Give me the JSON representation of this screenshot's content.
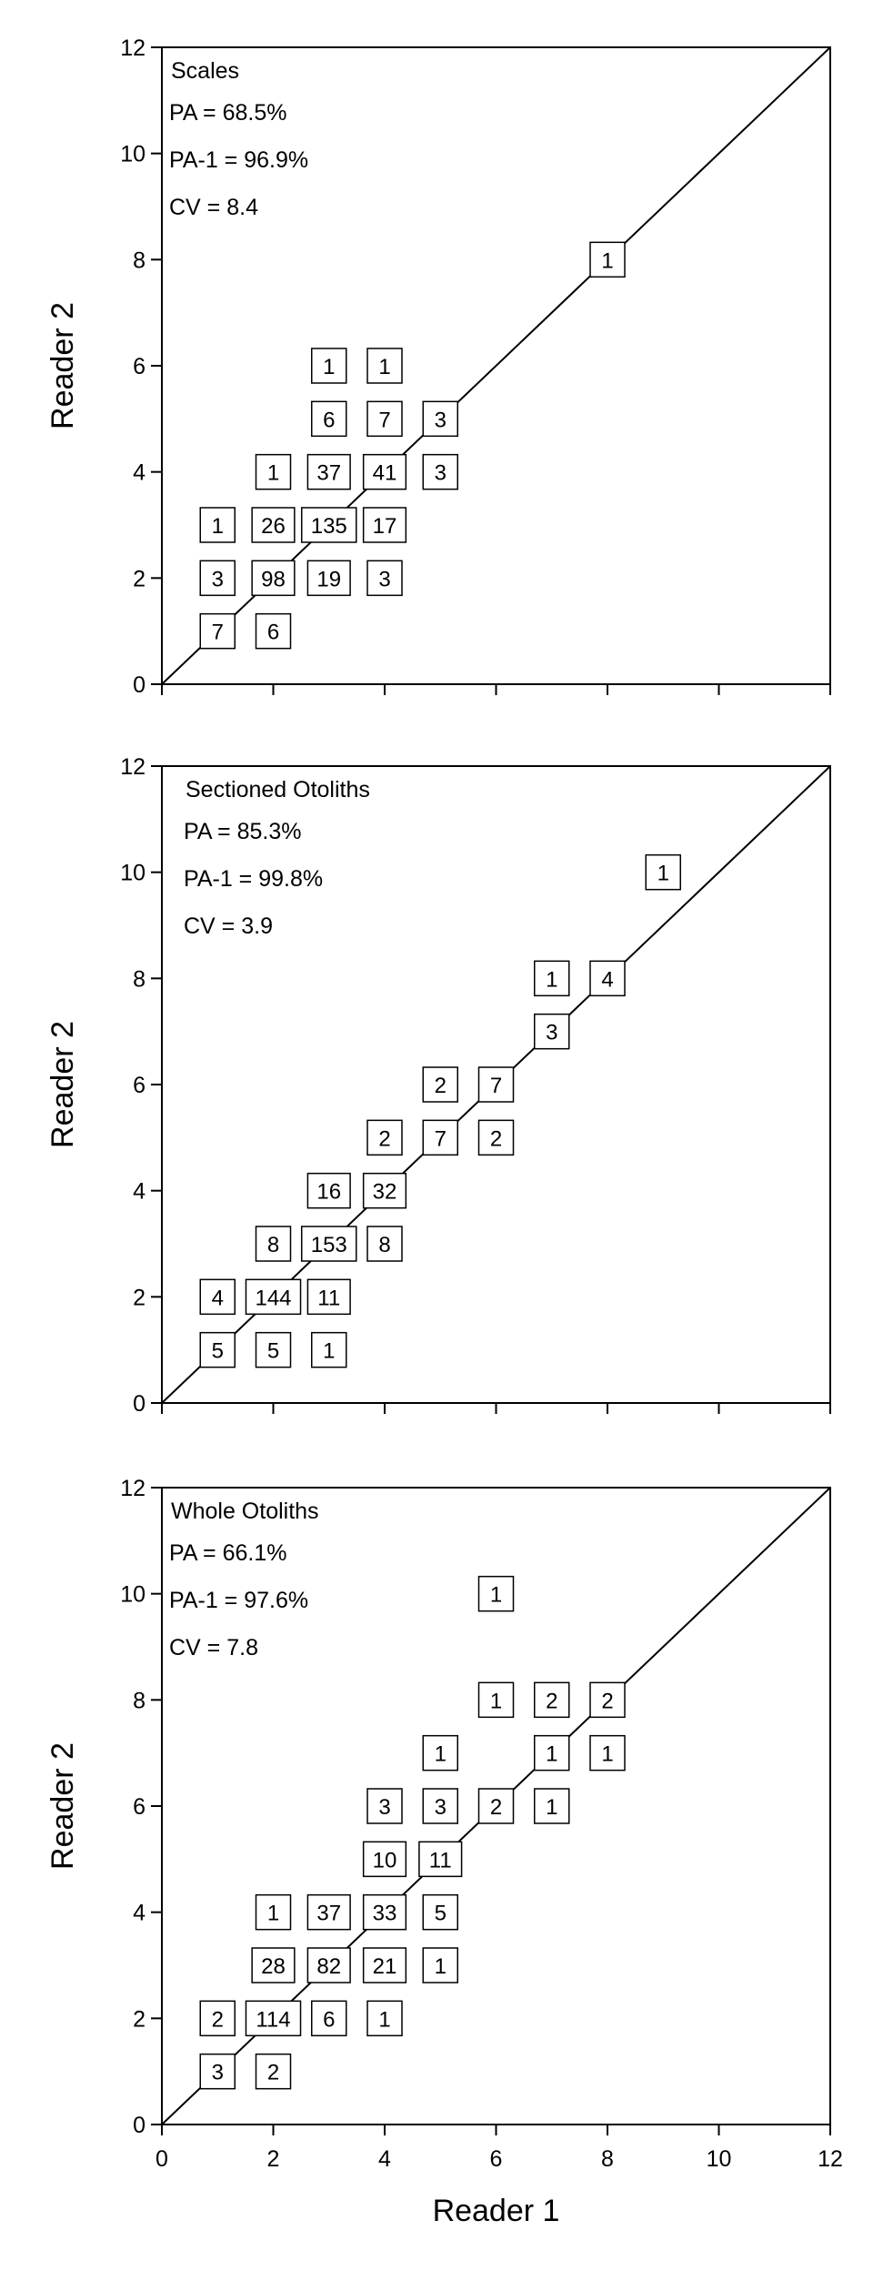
{
  "chart_data": [
    {
      "type": "scatter",
      "title": "Scales",
      "stats": [
        "PA = 68.5%",
        "PA-1 = 96.9%",
        "CV = 8.4"
      ],
      "xlabel": "",
      "ylabel": "Reader 2",
      "xlim": [
        0,
        12
      ],
      "ylim": [
        0,
        12
      ],
      "xticks": [
        0,
        2,
        4,
        6,
        8,
        10,
        12
      ],
      "yticks": [
        0,
        2,
        4,
        6,
        8,
        10,
        12
      ],
      "show_x_tick_labels": false,
      "reference_line": "1:1",
      "cells": [
        {
          "x": 1,
          "y": 1,
          "n": 7
        },
        {
          "x": 2,
          "y": 1,
          "n": 6
        },
        {
          "x": 1,
          "y": 2,
          "n": 3
        },
        {
          "x": 2,
          "y": 2,
          "n": 98
        },
        {
          "x": 3,
          "y": 2,
          "n": 19
        },
        {
          "x": 4,
          "y": 2,
          "n": 3
        },
        {
          "x": 1,
          "y": 3,
          "n": 1
        },
        {
          "x": 2,
          "y": 3,
          "n": 26
        },
        {
          "x": 3,
          "y": 3,
          "n": 135
        },
        {
          "x": 4,
          "y": 3,
          "n": 17
        },
        {
          "x": 2,
          "y": 4,
          "n": 1
        },
        {
          "x": 3,
          "y": 4,
          "n": 37
        },
        {
          "x": 4,
          "y": 4,
          "n": 41
        },
        {
          "x": 5,
          "y": 4,
          "n": 3
        },
        {
          "x": 3,
          "y": 5,
          "n": 6
        },
        {
          "x": 4,
          "y": 5,
          "n": 7
        },
        {
          "x": 5,
          "y": 5,
          "n": 3
        },
        {
          "x": 3,
          "y": 6,
          "n": 1
        },
        {
          "x": 4,
          "y": 6,
          "n": 1
        },
        {
          "x": 8,
          "y": 8,
          "n": 1
        }
      ]
    },
    {
      "type": "scatter",
      "title": "Sectioned Otoliths",
      "stats": [
        "PA = 85.3%",
        "PA-1 = 99.8%",
        "CV = 3.9"
      ],
      "xlabel": "",
      "ylabel": "Reader 2",
      "xlim": [
        0,
        12
      ],
      "ylim": [
        0,
        12
      ],
      "xticks": [
        0,
        2,
        4,
        6,
        8,
        10,
        12
      ],
      "yticks": [
        0,
        2,
        4,
        6,
        8,
        10,
        12
      ],
      "show_x_tick_labels": false,
      "reference_line": "1:1",
      "cells": [
        {
          "x": 1,
          "y": 1,
          "n": 5
        },
        {
          "x": 2,
          "y": 1,
          "n": 5
        },
        {
          "x": 3,
          "y": 1,
          "n": 1
        },
        {
          "x": 1,
          "y": 2,
          "n": 4
        },
        {
          "x": 2,
          "y": 2,
          "n": 144
        },
        {
          "x": 3,
          "y": 2,
          "n": 11
        },
        {
          "x": 2,
          "y": 3,
          "n": 8
        },
        {
          "x": 3,
          "y": 3,
          "n": 153
        },
        {
          "x": 4,
          "y": 3,
          "n": 8
        },
        {
          "x": 3,
          "y": 4,
          "n": 16
        },
        {
          "x": 4,
          "y": 4,
          "n": 32
        },
        {
          "x": 4,
          "y": 5,
          "n": 2
        },
        {
          "x": 5,
          "y": 5,
          "n": 7
        },
        {
          "x": 6,
          "y": 5,
          "n": 2
        },
        {
          "x": 5,
          "y": 6,
          "n": 2
        },
        {
          "x": 6,
          "y": 6,
          "n": 7
        },
        {
          "x": 7,
          "y": 7,
          "n": 3
        },
        {
          "x": 7,
          "y": 8,
          "n": 1
        },
        {
          "x": 8,
          "y": 8,
          "n": 4
        },
        {
          "x": 9,
          "y": 10,
          "n": 1
        }
      ]
    },
    {
      "type": "scatter",
      "title": "Whole Otoliths",
      "stats": [
        "PA = 66.1%",
        "PA-1 = 97.6%",
        "CV = 7.8"
      ],
      "xlabel": "Reader 1",
      "ylabel": "Reader 2",
      "xlim": [
        0,
        12
      ],
      "ylim": [
        0,
        12
      ],
      "xticks": [
        0,
        2,
        4,
        6,
        8,
        10,
        12
      ],
      "yticks": [
        0,
        2,
        4,
        6,
        8,
        10,
        12
      ],
      "show_x_tick_labels": true,
      "reference_line": "1:1",
      "cells": [
        {
          "x": 1,
          "y": 1,
          "n": 3
        },
        {
          "x": 2,
          "y": 1,
          "n": 2
        },
        {
          "x": 1,
          "y": 2,
          "n": 2
        },
        {
          "x": 2,
          "y": 2,
          "n": 114
        },
        {
          "x": 3,
          "y": 2,
          "n": 6
        },
        {
          "x": 4,
          "y": 2,
          "n": 1
        },
        {
          "x": 2,
          "y": 3,
          "n": 28
        },
        {
          "x": 3,
          "y": 3,
          "n": 82
        },
        {
          "x": 4,
          "y": 3,
          "n": 21
        },
        {
          "x": 5,
          "y": 3,
          "n": 1
        },
        {
          "x": 2,
          "y": 4,
          "n": 1
        },
        {
          "x": 3,
          "y": 4,
          "n": 37
        },
        {
          "x": 4,
          "y": 4,
          "n": 33
        },
        {
          "x": 5,
          "y": 4,
          "n": 5
        },
        {
          "x": 4,
          "y": 5,
          "n": 10
        },
        {
          "x": 5,
          "y": 5,
          "n": 11
        },
        {
          "x": 4,
          "y": 6,
          "n": 3
        },
        {
          "x": 5,
          "y": 6,
          "n": 3
        },
        {
          "x": 6,
          "y": 6,
          "n": 2
        },
        {
          "x": 7,
          "y": 6,
          "n": 1
        },
        {
          "x": 5,
          "y": 7,
          "n": 1
        },
        {
          "x": 7,
          "y": 7,
          "n": 1
        },
        {
          "x": 8,
          "y": 7,
          "n": 1
        },
        {
          "x": 6,
          "y": 8,
          "n": 1
        },
        {
          "x": 7,
          "y": 8,
          "n": 2
        },
        {
          "x": 8,
          "y": 8,
          "n": 2
        },
        {
          "x": 6,
          "y": 10,
          "n": 1
        }
      ]
    }
  ]
}
